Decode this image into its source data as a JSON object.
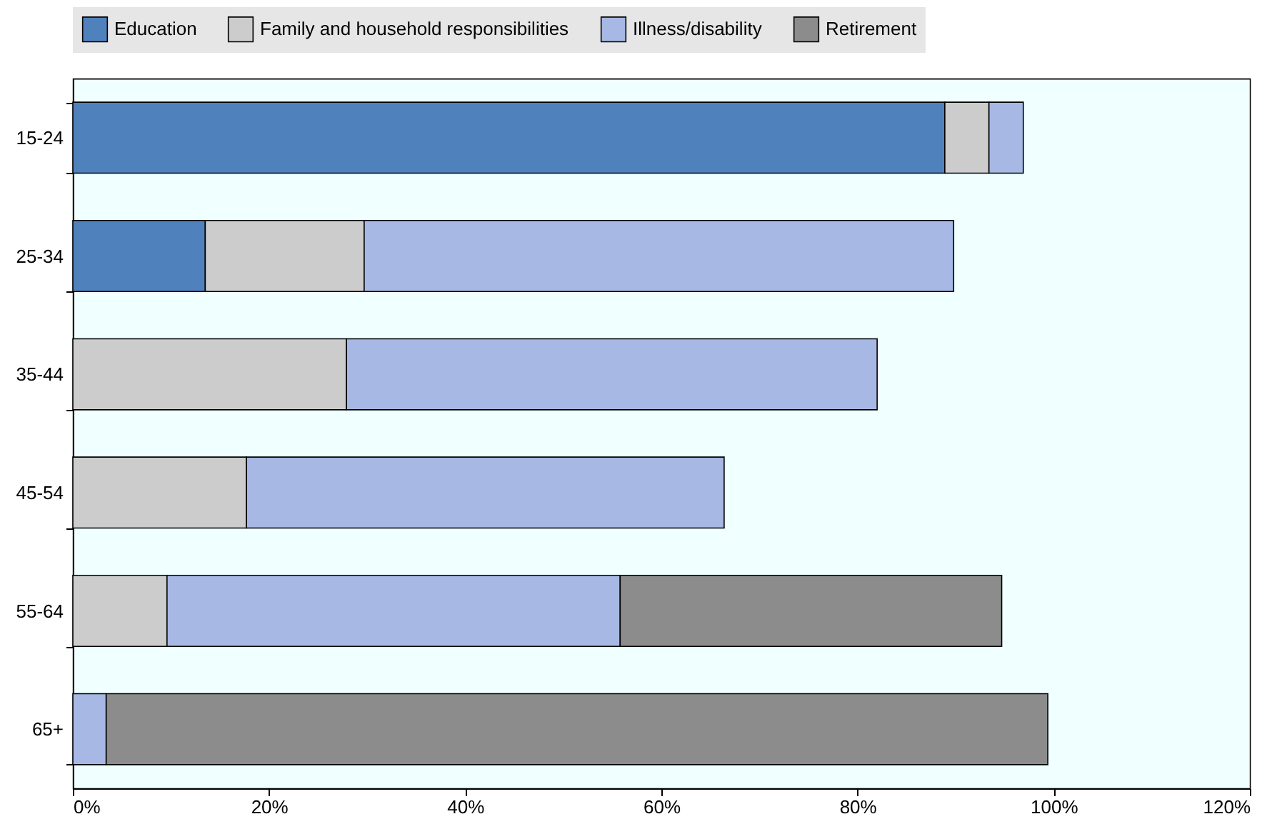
{
  "chart_data": {
    "type": "bar",
    "orientation": "horizontal",
    "stacked": true,
    "categories": [
      "15-24",
      "25-34",
      "35-44",
      "45-54",
      "55-64",
      "65+"
    ],
    "series": [
      {
        "name": "Education",
        "color": "#4f81bd",
        "values": [
          88.9,
          13.5,
          null,
          null,
          null,
          null
        ]
      },
      {
        "name": "Family and household responsibilities",
        "color": "#cccccc",
        "values": [
          4.5,
          16.2,
          27.9,
          17.7,
          9.6,
          null
        ]
      },
      {
        "name": "Illness/disability",
        "color": "#a6b8e3",
        "values": [
          3.5,
          60.1,
          54.1,
          48.7,
          46.2,
          3.4
        ]
      },
      {
        "name": "Retirement",
        "color": "#8c8c8c",
        "values": [
          null,
          null,
          null,
          null,
          38.9,
          96.0
        ]
      }
    ],
    "xlim": [
      0,
      120
    ],
    "xticks": [
      {
        "value": 0,
        "label": "0%"
      },
      {
        "value": 20,
        "label": "20%"
      },
      {
        "value": 40,
        "label": "40%"
      },
      {
        "value": 60,
        "label": "60%"
      },
      {
        "value": 80,
        "label": "80%"
      },
      {
        "value": 100,
        "label": "100%"
      },
      {
        "value": 120,
        "label": "120%"
      }
    ],
    "legend": "top",
    "grid": false
  }
}
